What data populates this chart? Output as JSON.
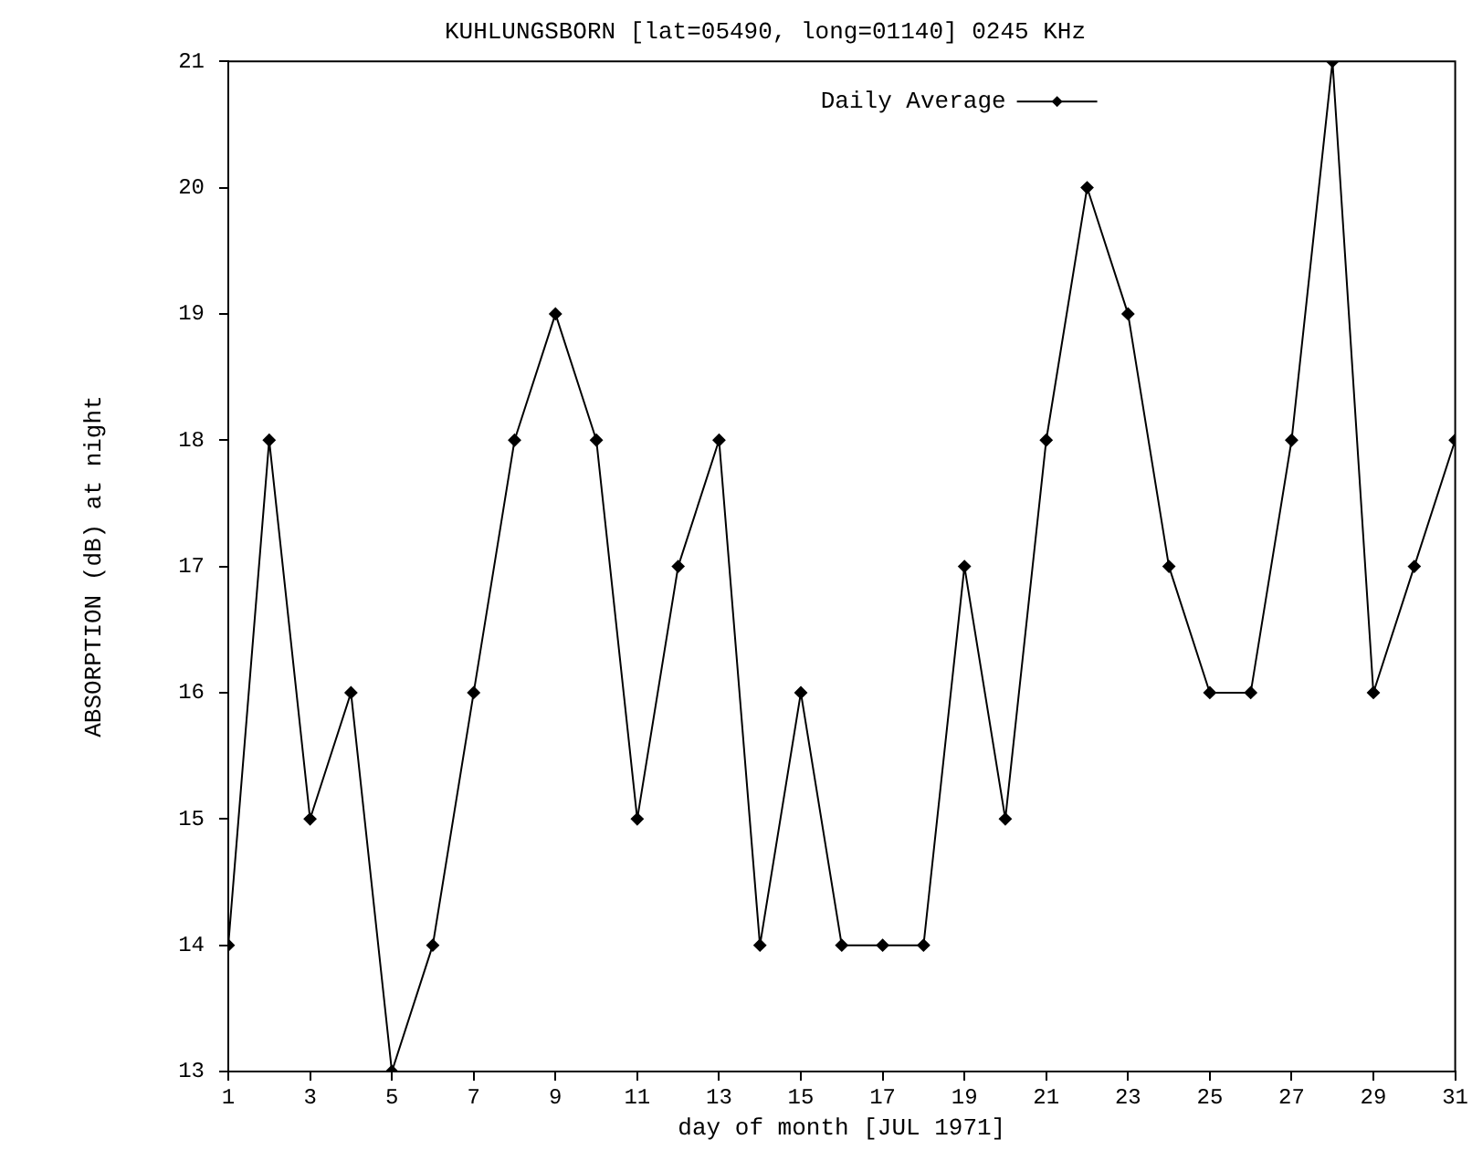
{
  "chart_data": {
    "type": "line",
    "title": "KUHLUNGSBORN [lat=05490, long=01140] 0245 KHz",
    "xlabel": "day of month [JUL 1971]",
    "ylabel": "ABSORPTION (dB) at night",
    "x": [
      1,
      2,
      3,
      4,
      5,
      6,
      7,
      8,
      9,
      10,
      11,
      12,
      13,
      14,
      15,
      16,
      17,
      18,
      19,
      20,
      21,
      22,
      23,
      24,
      25,
      26,
      27,
      28,
      29,
      30,
      31
    ],
    "series": [
      {
        "name": "Daily Average",
        "color": "#000000",
        "values": [
          14,
          18,
          15,
          16,
          13,
          14,
          16,
          18,
          19,
          18,
          15,
          17,
          18,
          14,
          16,
          14,
          14,
          14,
          17,
          15,
          18,
          20,
          19,
          17,
          16,
          16,
          18,
          21,
          16,
          17,
          18
        ]
      }
    ],
    "xlim": [
      1,
      31
    ],
    "xticks": [
      1,
      3,
      5,
      7,
      9,
      11,
      13,
      15,
      17,
      19,
      21,
      23,
      25,
      27,
      29,
      31
    ],
    "ylim": [
      13,
      21
    ],
    "yticks": [
      13,
      14,
      15,
      16,
      17,
      18,
      19,
      20,
      21
    ],
    "grid": false,
    "legend": "top right",
    "marker": "diamond",
    "line_style": "solid"
  }
}
